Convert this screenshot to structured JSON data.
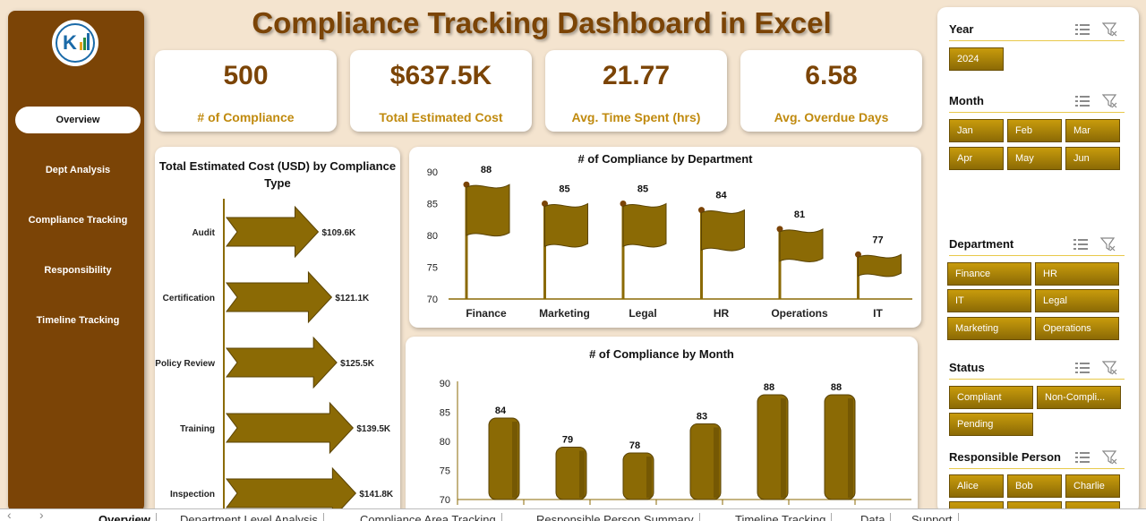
{
  "title": "Compliance Tracking Dashboard in Excel",
  "nav": [
    "Overview",
    "Dept Analysis",
    "Compliance Tracking",
    "Responsibility",
    "Timeline Tracking"
  ],
  "kpis": [
    {
      "value": "500",
      "label": "# of Compliance"
    },
    {
      "value": "$637.5K",
      "label": "Total Estimated Cost"
    },
    {
      "value": "21.77",
      "label": "Avg. Time Spent (hrs)"
    },
    {
      "value": "6.58",
      "label": "Avg. Overdue Days"
    }
  ],
  "chart_data": [
    {
      "type": "bar",
      "orientation": "horizontal",
      "title": "Total Estimated Cost (USD) by Compliance Type",
      "categories": [
        "Audit",
        "Certification",
        "Policy Review",
        "Training",
        "Inspection"
      ],
      "values": [
        109.6,
        121.1,
        125.5,
        139.5,
        141.8
      ],
      "labels": [
        "$109.6K",
        "$121.1K",
        "$125.5K",
        "$139.5K",
        "$141.8K"
      ],
      "color": "#8b6a05"
    },
    {
      "type": "bar",
      "title": "# of Compliance by Department",
      "categories": [
        "Finance",
        "Marketing",
        "Legal",
        "HR",
        "Operations",
        "IT"
      ],
      "values": [
        88,
        85,
        85,
        84,
        81,
        77
      ],
      "ylim": [
        70,
        90
      ],
      "yticks": [
        70,
        75,
        80,
        85,
        90
      ],
      "color": "#8b6a05"
    },
    {
      "type": "bar",
      "title": "# of Compliance by Month",
      "values": [
        84,
        79,
        78,
        83,
        88,
        88
      ],
      "ylim": [
        70,
        90
      ],
      "yticks": [
        70,
        75,
        80,
        85,
        90
      ],
      "color": "#8b6a05"
    }
  ],
  "slicers": {
    "year": {
      "title": "Year",
      "items": [
        "2024"
      ]
    },
    "month": {
      "title": "Month",
      "items": [
        "Jan",
        "Feb",
        "Mar",
        "Apr",
        "May",
        "Jun"
      ]
    },
    "department": {
      "title": "Department",
      "items": [
        "Finance",
        "HR",
        "IT",
        "Legal",
        "Marketing",
        "Operations"
      ]
    },
    "status": {
      "title": "Status",
      "items": [
        "Compliant",
        "Non-Compli...",
        "Pending"
      ]
    },
    "person": {
      "title": "Responsible Person",
      "items": [
        "Alice",
        "Bob",
        "Charlie"
      ]
    }
  },
  "tabs": [
    "Overview",
    "Department Level Analysis",
    "Compliance Area Tracking",
    "Responsible Person Summary",
    "Timeline Tracking",
    "Data",
    "Support"
  ]
}
